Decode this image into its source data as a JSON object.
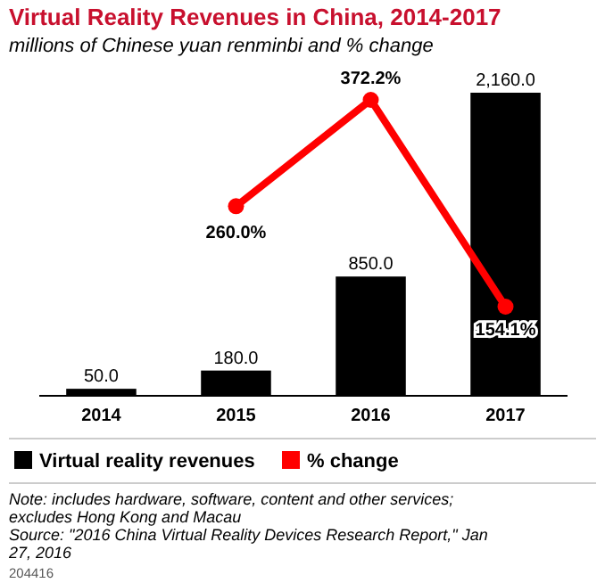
{
  "chart_data": {
    "type": "bar",
    "title": "Virtual Reality Revenues in China, 2014-2017",
    "subtitle": "millions of Chinese yuan renminbi and % change",
    "categories": [
      "2014",
      "2015",
      "2016",
      "2017"
    ],
    "series": [
      {
        "name": "Virtual reality revenues",
        "color": "#000000",
        "values": [
          50.0,
          180.0,
          850.0,
          2160.0
        ],
        "value_labels": [
          "50.0",
          "180.0",
          "850.0",
          "2,160.0"
        ]
      },
      {
        "name": "% change",
        "type": "line",
        "axis": "y2",
        "color": "#ff0000",
        "values": [
          null,
          260.0,
          372.2,
          154.1
        ],
        "value_labels": [
          null,
          "260.0%",
          "372.2%",
          "154.1%"
        ]
      }
    ],
    "legend": "bottom",
    "marker": "circle",
    "annotations": [
      "Note: includes hardware, software, content and other services; excludes Hong Kong and Macau",
      "Source: \"2016 China Virtual Reality Devices Research Report,\" Jan 27, 2016",
      "204416"
    ]
  }
}
